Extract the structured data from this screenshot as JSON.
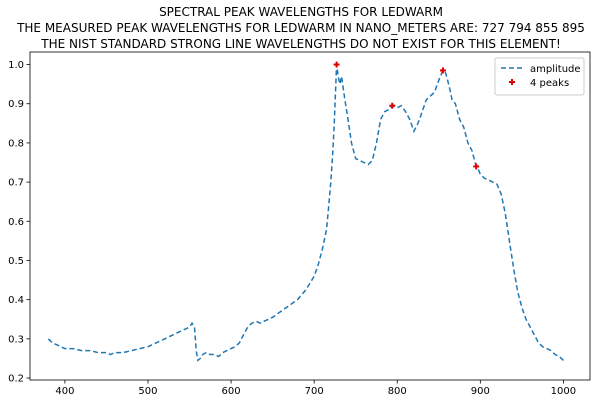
{
  "titles": {
    "line1": "SPECTRAL PEAK WAVELENGTHS FOR LEDWARM",
    "line2": "THE MEASURED PEAK WAVELENGTHS FOR LEDWARM IN NANO_METERS ARE: 727 794 855 895",
    "line3": "THE NIST STANDARD STRONG LINE WAVELENGTHS DO NOT EXIST FOR THIS ELEMENT!"
  },
  "legend": {
    "line_label": "amplitude",
    "peaks_label": "4 peaks",
    "placement": "top-right"
  },
  "colors": {
    "line": "#1f77b4",
    "peaks": "#e00000"
  },
  "chart_data": {
    "type": "line",
    "title": "SPECTRAL PEAK WAVELENGTHS FOR LEDWARM",
    "xlabel": "",
    "ylabel": "",
    "xlim": [
      358,
      1032
    ],
    "ylim": [
      0.195,
      1.032
    ],
    "xticks": [
      400,
      500,
      600,
      700,
      800,
      900,
      1000
    ],
    "yticks": [
      0.2,
      0.3,
      0.4,
      0.5,
      0.6,
      0.7,
      0.8,
      0.9,
      1.0
    ],
    "grid": false,
    "series": [
      {
        "name": "amplitude",
        "style": "dashed",
        "x": [
          380,
          385,
          390,
          400,
          410,
          420,
          430,
          440,
          450,
          455,
          460,
          470,
          480,
          490,
          500,
          510,
          520,
          530,
          540,
          545,
          550,
          553,
          556,
          558,
          560,
          563,
          566,
          570,
          575,
          580,
          585,
          590,
          595,
          600,
          605,
          610,
          615,
          620,
          625,
          630,
          635,
          640,
          650,
          660,
          670,
          680,
          690,
          700,
          705,
          710,
          715,
          718,
          720,
          722,
          724,
          727,
          729,
          731,
          733,
          735,
          737,
          740,
          745,
          750,
          755,
          760,
          765,
          770,
          775,
          780,
          785,
          790,
          794,
          800,
          805,
          810,
          815,
          820,
          825,
          830,
          835,
          840,
          845,
          850,
          855,
          858,
          860,
          863,
          866,
          870,
          875,
          880,
          885,
          890,
          895,
          898,
          900,
          905,
          910,
          915,
          920,
          925,
          930,
          935,
          940,
          945,
          950,
          955,
          960,
          965,
          970,
          975,
          980,
          985,
          990,
          995,
          1000
        ],
        "values": [
          0.3,
          0.29,
          0.285,
          0.275,
          0.275,
          0.27,
          0.27,
          0.265,
          0.265,
          0.26,
          0.265,
          0.265,
          0.27,
          0.275,
          0.28,
          0.29,
          0.3,
          0.31,
          0.32,
          0.325,
          0.33,
          0.34,
          0.33,
          0.27,
          0.245,
          0.25,
          0.26,
          0.265,
          0.26,
          0.26,
          0.255,
          0.265,
          0.27,
          0.275,
          0.28,
          0.29,
          0.31,
          0.33,
          0.34,
          0.345,
          0.34,
          0.345,
          0.355,
          0.37,
          0.385,
          0.4,
          0.425,
          0.46,
          0.49,
          0.53,
          0.58,
          0.65,
          0.7,
          0.76,
          0.84,
          1.0,
          0.97,
          0.95,
          0.97,
          0.94,
          0.91,
          0.87,
          0.8,
          0.76,
          0.755,
          0.75,
          0.745,
          0.755,
          0.8,
          0.86,
          0.88,
          0.885,
          0.895,
          0.89,
          0.895,
          0.88,
          0.86,
          0.83,
          0.85,
          0.88,
          0.91,
          0.92,
          0.93,
          0.96,
          0.985,
          0.98,
          0.965,
          0.94,
          0.91,
          0.9,
          0.86,
          0.84,
          0.8,
          0.78,
          0.74,
          0.73,
          0.72,
          0.71,
          0.705,
          0.7,
          0.695,
          0.67,
          0.62,
          0.55,
          0.48,
          0.42,
          0.38,
          0.35,
          0.33,
          0.31,
          0.29,
          0.28,
          0.275,
          0.27,
          0.26,
          0.255,
          0.245
        ]
      },
      {
        "name": "4 peaks",
        "style": "markers",
        "x": [
          727,
          794,
          855,
          895
        ],
        "values": [
          1.0,
          0.895,
          0.985,
          0.74
        ]
      }
    ]
  }
}
